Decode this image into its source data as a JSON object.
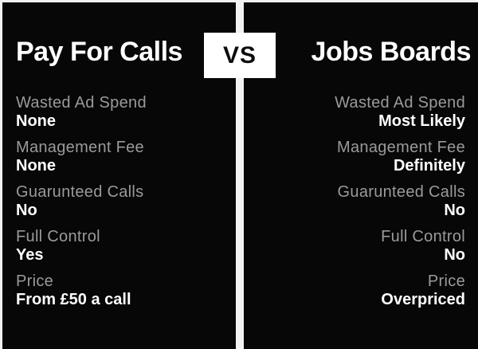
{
  "theme": {
    "canvas_bg": "#f2f2f2",
    "panel_bg": "#070707",
    "label_color": "#9a9a9a",
    "value_color": "#ffffff",
    "badge_bg": "#ffffff",
    "badge_text_color": "#0d0d0d"
  },
  "vs_badge": {
    "label": "VS"
  },
  "left_panel": {
    "title": "Pay For Calls",
    "rows": [
      {
        "label": "Wasted Ad Spend",
        "value": "None"
      },
      {
        "label": "Management Fee",
        "value": "None"
      },
      {
        "label": "Guarunteed Calls",
        "value": "No"
      },
      {
        "label": "Full Control",
        "value": "Yes"
      },
      {
        "label": "Price",
        "value": "From £50 a call"
      }
    ]
  },
  "right_panel": {
    "title": "Jobs Boards",
    "rows": [
      {
        "label": "Wasted Ad Spend",
        "value": "Most Likely"
      },
      {
        "label": "Management Fee",
        "value": "Definitely"
      },
      {
        "label": "Guarunteed Calls",
        "value": "No"
      },
      {
        "label": "Full Control",
        "value": "No"
      },
      {
        "label": "Price",
        "value": "Overpriced"
      }
    ]
  }
}
